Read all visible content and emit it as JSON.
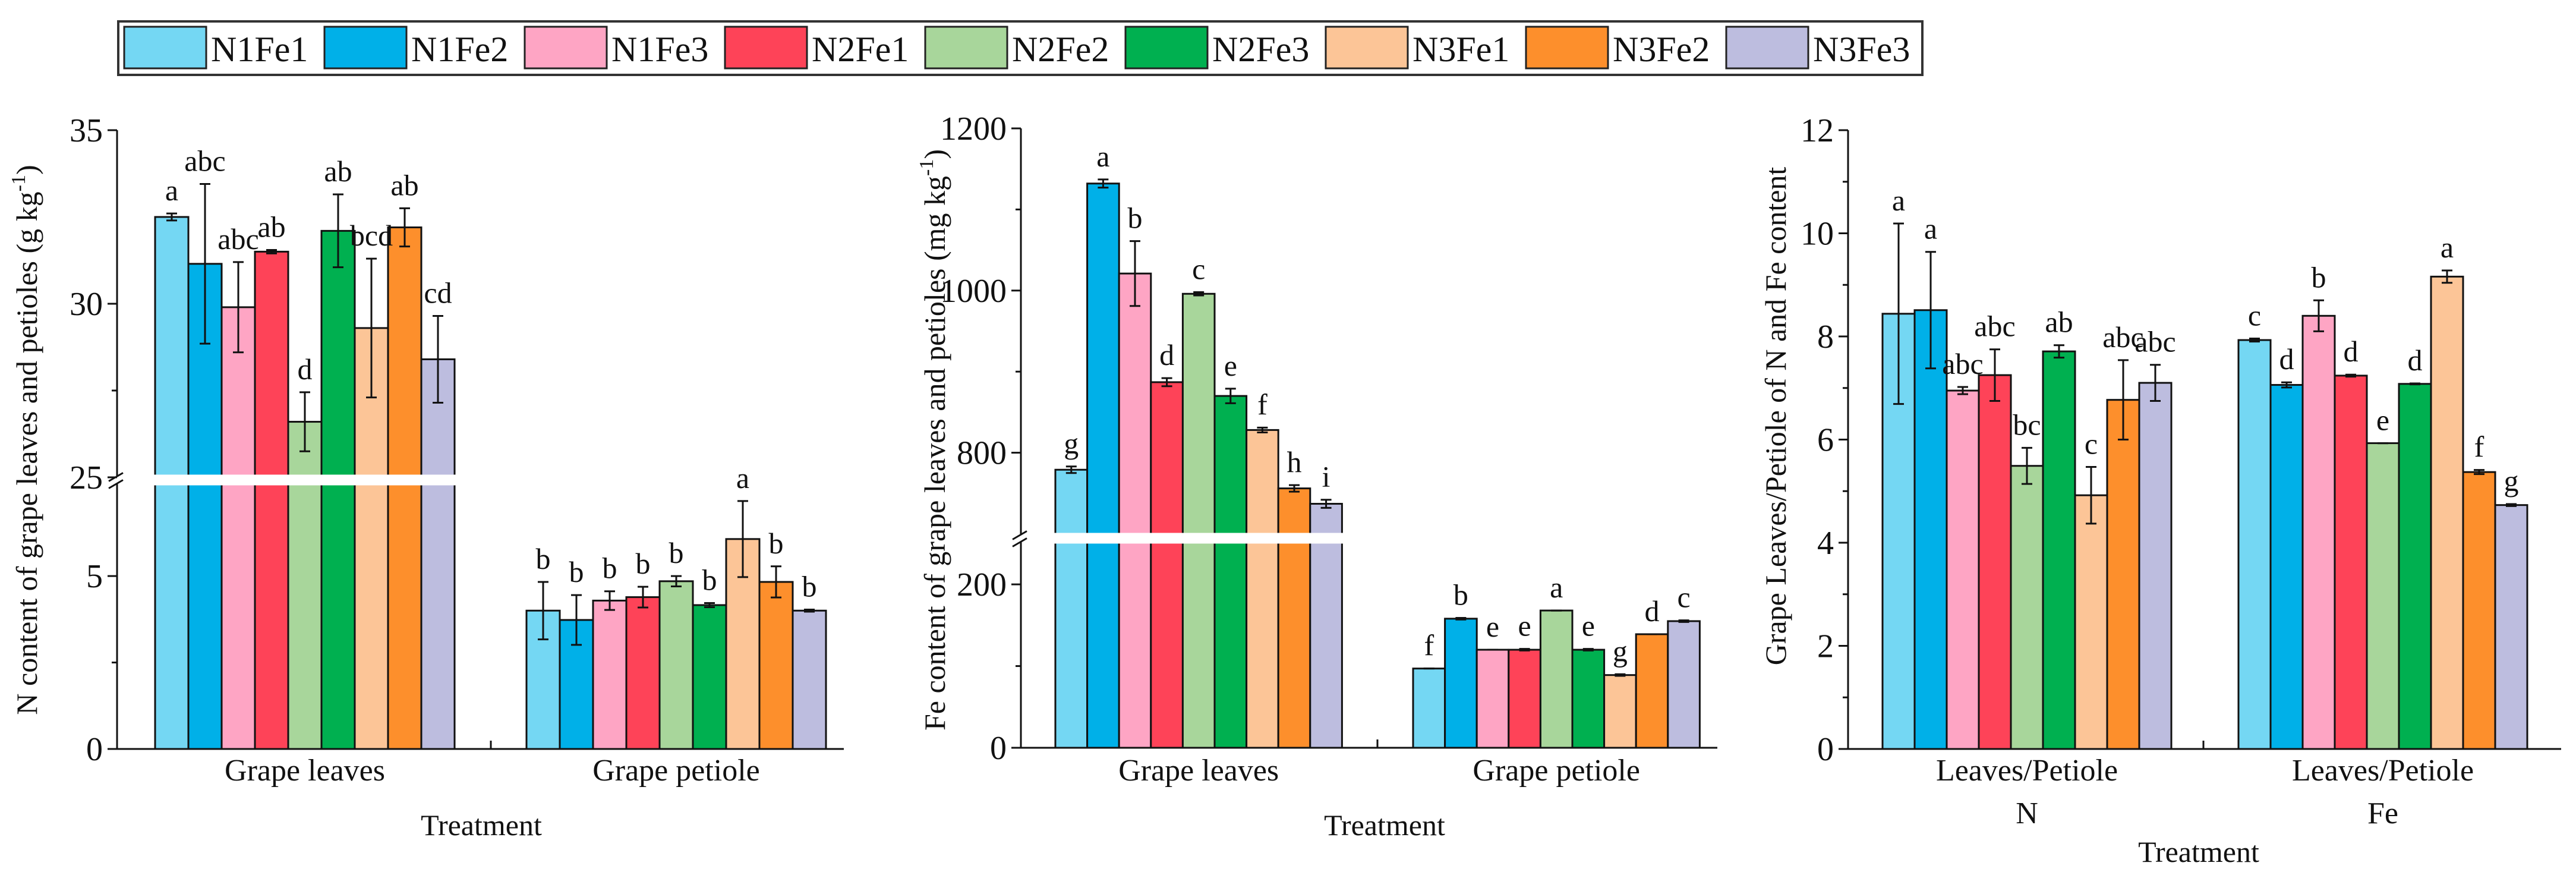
{
  "legend": {
    "items": [
      "N1Fe1",
      "N1Fe2",
      "N1Fe3",
      "N2Fe1",
      "N2Fe2",
      "N2Fe3",
      "N3Fe1",
      "N3Fe2",
      "N3Fe3"
    ],
    "colors": [
      "#74d7f3",
      "#00b0e8",
      "#fea5c4",
      "#fe4358",
      "#a8d69b",
      "#00b050",
      "#fcc597",
      "#fd8f2c",
      "#bdbddf"
    ]
  },
  "chart_data": [
    {
      "type": "bar",
      "title": "",
      "ylabel_main": "N content of grape leaves and petioles (g kg",
      "ylabel_sup": "-1",
      "ylabel_end": ")",
      "xlabel": "Treatment",
      "categories": [
        "Grape leaves",
        "Grape petiole"
      ],
      "y_segments": [
        [
          0,
          7.7
        ],
        [
          25,
          35
        ]
      ],
      "y_ticks": [
        0,
        5,
        25,
        30,
        35
      ],
      "y_tick_labels": [
        "0",
        "5",
        "25",
        "30",
        "35"
      ],
      "y_minor_ticks": [
        2.5,
        27.5
      ],
      "series": [
        {
          "name": "N1Fe1",
          "values": [
            32.5,
            4.0
          ],
          "errors": [
            0.1,
            0.83
          ],
          "letters": [
            "a",
            "b"
          ]
        },
        {
          "name": "N1Fe2",
          "values": [
            31.15,
            3.73
          ],
          "errors": [
            2.3,
            0.72
          ],
          "letters": [
            "abc",
            "b"
          ]
        },
        {
          "name": "N1Fe3",
          "values": [
            29.9,
            4.29
          ],
          "errors": [
            1.3,
            0.27
          ],
          "letters": [
            "abc",
            "b"
          ]
        },
        {
          "name": "N2Fe1",
          "values": [
            31.5,
            4.39
          ],
          "errors": [
            0.05,
            0.3
          ],
          "letters": [
            "ab",
            "b"
          ]
        },
        {
          "name": "N2Fe2",
          "values": [
            26.6,
            4.85
          ],
          "errors": [
            0.85,
            0.15
          ],
          "letters": [
            "d",
            "b"
          ]
        },
        {
          "name": "N2Fe3",
          "values": [
            32.1,
            4.16
          ],
          "errors": [
            1.05,
            0.06
          ],
          "letters": [
            "ab",
            "b"
          ]
        },
        {
          "name": "N3Fe1",
          "values": [
            29.3,
            6.07
          ],
          "errors": [
            2.0,
            1.1
          ],
          "letters": [
            "bcd",
            "a"
          ]
        },
        {
          "name": "N3Fe2",
          "values": [
            32.2,
            4.83
          ],
          "errors": [
            0.55,
            0.45
          ],
          "letters": [
            "ab",
            "b"
          ]
        },
        {
          "name": "N3Fe3",
          "values": [
            28.4,
            4.0
          ],
          "errors": [
            1.25,
            0.03
          ],
          "letters": [
            "cd",
            "b"
          ]
        }
      ]
    },
    {
      "type": "bar",
      "title": "",
      "ylabel_main": "Fe content of grape leaves and petioles (mg kg",
      "ylabel_sup": "-1",
      "ylabel_end": ")",
      "xlabel": "Treatment",
      "categories": [
        "Grape leaves",
        "Grape petiole"
      ],
      "y_segments": [
        [
          0,
          251
        ],
        [
          700,
          1200
        ]
      ],
      "y_ticks": [
        0,
        200,
        800,
        1000,
        1200
      ],
      "y_tick_labels": [
        "0",
        "200",
        "800",
        "1000",
        "1200"
      ],
      "y_minor_ticks": [
        100,
        900,
        1100
      ],
      "series": [
        {
          "name": "N1Fe1",
          "values": [
            779,
            97
          ],
          "errors": [
            4,
            0
          ],
          "letters": [
            "g",
            "f"
          ]
        },
        {
          "name": "N1Fe2",
          "values": [
            1132,
            158
          ],
          "errors": [
            5,
            1
          ],
          "letters": [
            "a",
            "b"
          ]
        },
        {
          "name": "N1Fe3",
          "values": [
            1021,
            120
          ],
          "errors": [
            40,
            0
          ],
          "letters": [
            "b",
            "e"
          ]
        },
        {
          "name": "N2Fe1",
          "values": [
            887,
            120
          ],
          "errors": [
            5,
            1
          ],
          "letters": [
            "d",
            "e"
          ]
        },
        {
          "name": "N2Fe2",
          "values": [
            996,
            168
          ],
          "errors": [
            2,
            0
          ],
          "letters": [
            "c",
            "a"
          ]
        },
        {
          "name": "N2Fe3",
          "values": [
            870,
            120
          ],
          "errors": [
            9,
            1
          ],
          "letters": [
            "e",
            "e"
          ]
        },
        {
          "name": "N3Fe1",
          "values": [
            828,
            89
          ],
          "errors": [
            3,
            1
          ],
          "letters": [
            "f",
            "g"
          ]
        },
        {
          "name": "N3Fe2",
          "values": [
            756,
            139
          ],
          "errors": [
            4,
            0
          ],
          "letters": [
            "h",
            "d"
          ]
        },
        {
          "name": "N3Fe3",
          "values": [
            737,
            155
          ],
          "errors": [
            5,
            1
          ],
          "letters": [
            "i",
            "c"
          ]
        }
      ]
    },
    {
      "type": "bar",
      "title": "",
      "ylabel_main": "Grape Leaves/Petiole of N and Fe content",
      "ylabel_sup": "",
      "ylabel_end": "",
      "xlabel": "Treatment",
      "categories": [
        "Leaves/Petiole",
        "Leaves/Petiole"
      ],
      "category_sublabels": [
        "N",
        "Fe"
      ],
      "y_segments": [
        [
          0,
          12
        ]
      ],
      "y_ticks": [
        0,
        2,
        4,
        6,
        8,
        10,
        12
      ],
      "y_tick_labels": [
        "0",
        "2",
        "4",
        "6",
        "8",
        "10",
        "12"
      ],
      "y_minor_ticks": [
        1,
        3,
        5,
        7,
        9,
        11
      ],
      "series": [
        {
          "name": "N1Fe1",
          "values": [
            8.44,
            7.93
          ],
          "errors": [
            1.75,
            0.03
          ],
          "letters": [
            "a",
            "c"
          ]
        },
        {
          "name": "N1Fe2",
          "values": [
            8.51,
            7.06
          ],
          "errors": [
            1.13,
            0.05
          ],
          "letters": [
            "a",
            "d"
          ]
        },
        {
          "name": "N1Fe3",
          "values": [
            6.95,
            8.4
          ],
          "errors": [
            0.07,
            0.3
          ],
          "letters": [
            "abc",
            "b"
          ]
        },
        {
          "name": "N2Fe1",
          "values": [
            7.25,
            7.24
          ],
          "errors": [
            0.5,
            0.02
          ],
          "letters": [
            "abc",
            "d"
          ]
        },
        {
          "name": "N2Fe2",
          "values": [
            5.49,
            5.93
          ],
          "errors": [
            0.35,
            0
          ],
          "letters": [
            "bc",
            "e"
          ]
        },
        {
          "name": "N2Fe3",
          "values": [
            7.71,
            7.08
          ],
          "errors": [
            0.12,
            0.01
          ],
          "letters": [
            "ab",
            "d"
          ]
        },
        {
          "name": "N3Fe1",
          "values": [
            4.92,
            9.16
          ],
          "errors": [
            0.55,
            0.12
          ],
          "letters": [
            "c",
            "a"
          ]
        },
        {
          "name": "N3Fe2",
          "values": [
            6.77,
            5.37
          ],
          "errors": [
            0.77,
            0.04
          ],
          "letters": [
            "abc",
            "f"
          ]
        },
        {
          "name": "N3Fe3",
          "values": [
            7.1,
            4.73
          ],
          "errors": [
            0.35,
            0.02
          ],
          "letters": [
            "abc",
            "g"
          ]
        }
      ]
    }
  ]
}
